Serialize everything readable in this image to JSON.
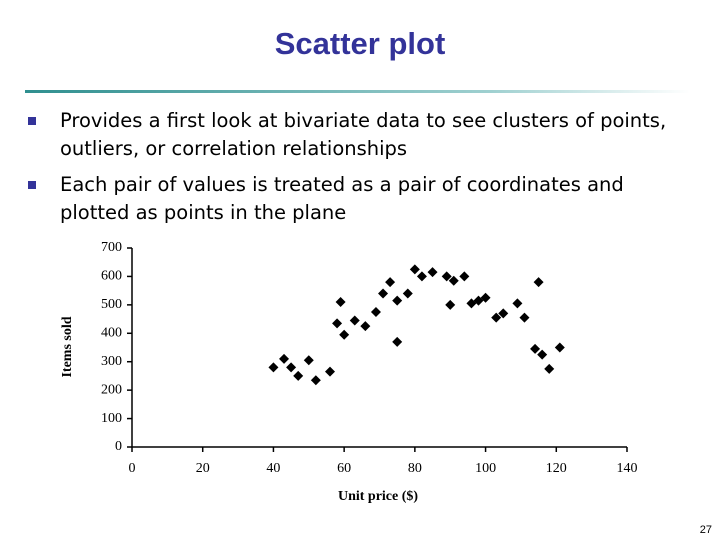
{
  "slide": {
    "title": "Scatter plot",
    "bullets": [
      "Provides a first look at bivariate data to see clusters of points, outliers, or correlation relationships",
      "Each pair of values is treated as a pair of coordinates and plotted as points in the plane"
    ],
    "page_number": "27"
  },
  "chart_data": {
    "type": "scatter",
    "x_label": "Unit price ($)",
    "y_label": "Items sold",
    "color": "#000000",
    "x": [
      40,
      43,
      45,
      47,
      50,
      52,
      56,
      58,
      59,
      60,
      63,
      66,
      69,
      71,
      73,
      75,
      75,
      78,
      80,
      82,
      85,
      89,
      90,
      91,
      94,
      96,
      98,
      100,
      103,
      105,
      109,
      111,
      114,
      115,
      116,
      118,
      121
    ],
    "values": [
      280,
      310,
      280,
      250,
      305,
      235,
      265,
      435,
      510,
      395,
      445,
      425,
      475,
      540,
      580,
      370,
      515,
      540,
      625,
      600,
      615,
      600,
      500,
      585,
      600,
      505,
      515,
      525,
      455,
      470,
      505,
      455,
      345,
      580,
      325,
      275,
      350
    ],
    "xlim": [
      0,
      140
    ],
    "ylim": [
      0,
      700
    ],
    "xticks": [
      0,
      20,
      40,
      60,
      80,
      100,
      120,
      140
    ],
    "yticks": [
      0,
      100,
      200,
      300,
      400,
      500,
      600,
      700
    ]
  }
}
